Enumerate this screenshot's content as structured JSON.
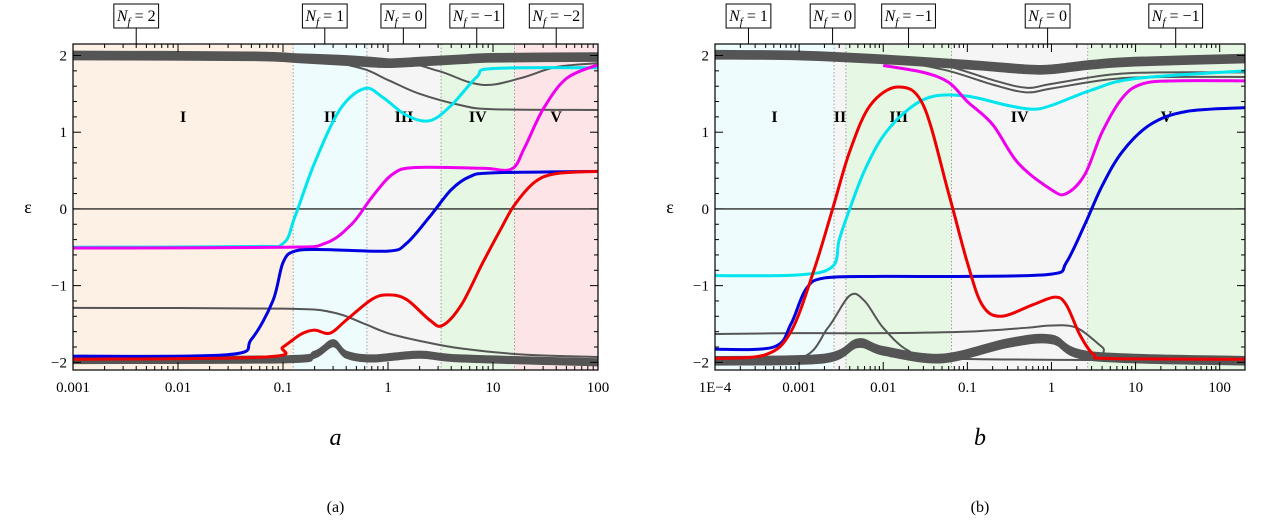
{
  "chart_data": [
    {
      "type": "line",
      "caption": "(a)",
      "xlabel": "a",
      "ylabel": "ε",
      "x_scale": "log",
      "xlim": [
        0.001,
        100
      ],
      "ylim": [
        -2.1,
        2.15
      ],
      "x_ticks": [
        0.001,
        0.01,
        0.1,
        1,
        10,
        100
      ],
      "x_tick_labels": [
        "0.001",
        "0.01",
        "0.1",
        "1",
        "10",
        "100"
      ],
      "y_ticks": [
        -2,
        -1,
        0,
        1,
        2
      ],
      "y_tick_labels": [
        "−2",
        "−1",
        "0",
        "1",
        "2"
      ],
      "regions": [
        {
          "label": "I",
          "x_from": 0.001,
          "x_to": 0.125,
          "color": "#fdf0e4"
        },
        {
          "label": "II",
          "x_from": 0.125,
          "x_to": 0.63,
          "color": "#eefcfd"
        },
        {
          "label": "III",
          "x_from": 0.63,
          "x_to": 3.2,
          "color": "#f5f5f5"
        },
        {
          "label": "IV",
          "x_from": 3.2,
          "x_to": 16,
          "color": "#e6f7e4"
        },
        {
          "label": "V",
          "x_from": 16,
          "x_to": 100,
          "color": "#fde4e6"
        }
      ],
      "region_label_y": 1.2,
      "top_labels": [
        {
          "text": "N_f = 2",
          "x": 0.004
        },
        {
          "text": "N_f = 1",
          "x": 0.25
        },
        {
          "text": "N_f = 0",
          "x": 1.4
        },
        {
          "text": "N_f = −1",
          "x": 7
        },
        {
          "text": "N_f = −2",
          "x": 40
        }
      ],
      "series": [
        {
          "color": "#00e5ee",
          "points": [
            [
              0.001,
              -0.5
            ],
            [
              0.05,
              -0.49
            ],
            [
              0.1,
              -0.45
            ],
            [
              0.13,
              -0.1
            ],
            [
              0.2,
              0.6
            ],
            [
              0.35,
              1.3
            ],
            [
              0.6,
              1.57
            ],
            [
              0.9,
              1.45
            ],
            [
              1.5,
              1.22
            ],
            [
              2.5,
              1.15
            ],
            [
              4,
              1.35
            ],
            [
              7,
              1.72
            ],
            [
              10,
              1.83
            ],
            [
              100,
              1.84
            ]
          ]
        },
        {
          "color": "#ee00ee",
          "points": [
            [
              0.001,
              -0.51
            ],
            [
              0.1,
              -0.5
            ],
            [
              0.25,
              -0.45
            ],
            [
              0.45,
              -0.2
            ],
            [
              0.7,
              0.15
            ],
            [
              1.1,
              0.45
            ],
            [
              1.8,
              0.54
            ],
            [
              8,
              0.53
            ],
            [
              15,
              0.52
            ],
            [
              20,
              0.8
            ],
            [
              30,
              1.3
            ],
            [
              50,
              1.7
            ],
            [
              100,
              1.88
            ]
          ]
        },
        {
          "color": "#0000e0",
          "points": [
            [
              0.001,
              -1.92
            ],
            [
              0.03,
              -1.9
            ],
            [
              0.05,
              -1.7
            ],
            [
              0.08,
              -1.2
            ],
            [
              0.1,
              -0.7
            ],
            [
              0.13,
              -0.55
            ],
            [
              0.25,
              -0.53
            ],
            [
              1,
              -0.55
            ],
            [
              1.5,
              -0.45
            ],
            [
              2.5,
              -0.1
            ],
            [
              4,
              0.25
            ],
            [
              6,
              0.42
            ],
            [
              10,
              0.47
            ],
            [
              100,
              0.49
            ]
          ]
        },
        {
          "color": "#ee0000",
          "points": [
            [
              0.001,
              -1.96
            ],
            [
              0.07,
              -1.93
            ],
            [
              0.1,
              -1.8
            ],
            [
              0.15,
              -1.63
            ],
            [
              0.2,
              -1.58
            ],
            [
              0.28,
              -1.62
            ],
            [
              0.4,
              -1.45
            ],
            [
              0.7,
              -1.18
            ],
            [
              1,
              -1.12
            ],
            [
              1.5,
              -1.18
            ],
            [
              2.5,
              -1.45
            ],
            [
              3.3,
              -1.52
            ],
            [
              5,
              -1.25
            ],
            [
              8,
              -0.7
            ],
            [
              12,
              -0.25
            ],
            [
              16,
              0.05
            ],
            [
              25,
              0.35
            ],
            [
              40,
              0.46
            ],
            [
              100,
              0.49
            ]
          ]
        }
      ],
      "gray_bands": [
        {
          "points": [
            [
              0.001,
              2.0
            ],
            [
              0.05,
              1.99
            ],
            [
              0.15,
              1.96
            ],
            [
              0.5,
              1.92
            ],
            [
              1,
              1.9
            ],
            [
              2,
              1.92
            ],
            [
              5,
              1.95
            ],
            [
              10,
              1.97
            ],
            [
              100,
              1.98
            ]
          ],
          "spread": 0.05,
          "count": 6
        },
        {
          "points": [
            [
              0.001,
              2.03
            ],
            [
              0.1,
              2.02
            ],
            [
              1,
              1.95
            ],
            [
              3,
              1.8
            ],
            [
              6,
              1.65
            ],
            [
              10,
              1.62
            ],
            [
              20,
              1.72
            ],
            [
              40,
              1.85
            ],
            [
              100,
              1.9
            ]
          ],
          "spread": 0.02,
          "count": 1
        },
        {
          "points": [
            [
              0.001,
              2.02
            ],
            [
              0.1,
              2.0
            ],
            [
              0.5,
              1.85
            ],
            [
              1,
              1.68
            ],
            [
              2,
              1.5
            ],
            [
              5,
              1.35
            ],
            [
              10,
              1.3
            ],
            [
              100,
              1.29
            ]
          ],
          "spread": 0.02,
          "count": 1
        },
        {
          "points": [
            [
              0.001,
              -1.29
            ],
            [
              0.1,
              -1.3
            ],
            [
              0.3,
              -1.35
            ],
            [
              0.6,
              -1.5
            ],
            [
              1,
              -1.62
            ],
            [
              2,
              -1.72
            ],
            [
              5,
              -1.82
            ],
            [
              20,
              -1.9
            ],
            [
              100,
              -1.93
            ]
          ],
          "spread": 0.02,
          "count": 1
        },
        {
          "points": [
            [
              0.001,
              -1.97
            ],
            [
              0.1,
              -1.96
            ],
            [
              0.2,
              -1.9
            ],
            [
              0.3,
              -1.75
            ],
            [
              0.4,
              -1.9
            ],
            [
              0.7,
              -1.95
            ],
            [
              2,
              -1.9
            ],
            [
              5,
              -1.95
            ],
            [
              100,
              -2.0
            ]
          ],
          "spread": 0.04,
          "count": 6
        }
      ]
    },
    {
      "type": "line",
      "caption": "(b)",
      "xlabel": "b",
      "ylabel": "ε",
      "x_scale": "log",
      "xlim": [
        0.0001,
        200
      ],
      "ylim": [
        -2.1,
        2.15
      ],
      "x_ticks": [
        0.0001,
        0.001,
        0.01,
        0.1,
        1,
        10,
        100
      ],
      "x_tick_labels": [
        "1E−4",
        "0.001",
        "0.01",
        "0.1",
        "1",
        "10",
        "100"
      ],
      "y_ticks": [
        -2,
        -1,
        0,
        1,
        2
      ],
      "y_tick_labels": [
        "−2",
        "−1",
        "0",
        "1",
        "2"
      ],
      "regions": [
        {
          "label": "I",
          "x_from": 0.0001,
          "x_to": 0.0026,
          "color": "#eefcfd"
        },
        {
          "label": "II",
          "x_from": 0.0026,
          "x_to": 0.0036,
          "color": "#f5f5f5"
        },
        {
          "label": "III",
          "x_from": 0.0036,
          "x_to": 0.065,
          "color": "#e6f7e4"
        },
        {
          "label": "IV",
          "x_from": 0.065,
          "x_to": 2.7,
          "color": "#f5f5f5"
        },
        {
          "label": "V",
          "x_from": 2.7,
          "x_to": 200,
          "color": "#e6f7e4"
        }
      ],
      "region_label_y": 1.2,
      "top_labels": [
        {
          "text": "N_f = 1",
          "x": 0.00025
        },
        {
          "text": "N_f = 0",
          "x": 0.0025
        },
        {
          "text": "N_f = −1",
          "x": 0.02
        },
        {
          "text": "N_f = 0",
          "x": 0.9
        },
        {
          "text": "N_f = −1",
          "x": 30
        }
      ],
      "series": [
        {
          "color": "#00e5ee",
          "points": [
            [
              0.0001,
              -0.87
            ],
            [
              0.001,
              -0.86
            ],
            [
              0.0025,
              -0.75
            ],
            [
              0.003,
              -0.4
            ],
            [
              0.004,
              0.0
            ],
            [
              0.006,
              0.5
            ],
            [
              0.01,
              0.95
            ],
            [
              0.02,
              1.3
            ],
            [
              0.04,
              1.47
            ],
            [
              0.1,
              1.47
            ],
            [
              0.3,
              1.35
            ],
            [
              0.6,
              1.3
            ],
            [
              1,
              1.35
            ],
            [
              3,
              1.55
            ],
            [
              10,
              1.7
            ],
            [
              200,
              1.8
            ]
          ]
        },
        {
          "color": "#ee00ee",
          "points": [
            [
              0.01,
              1.87
            ],
            [
              0.03,
              1.78
            ],
            [
              0.06,
              1.65
            ],
            [
              0.1,
              1.4
            ],
            [
              0.2,
              1.1
            ],
            [
              0.4,
              0.6
            ],
            [
              1,
              0.25
            ],
            [
              1.5,
              0.2
            ],
            [
              2.5,
              0.45
            ],
            [
              4,
              1.0
            ],
            [
              7,
              1.45
            ],
            [
              12,
              1.63
            ],
            [
              30,
              1.67
            ],
            [
              200,
              1.67
            ]
          ]
        },
        {
          "color": "#0000e0",
          "points": [
            [
              0.0001,
              -1.83
            ],
            [
              0.0005,
              -1.8
            ],
            [
              0.0008,
              -1.5
            ],
            [
              0.0012,
              -1.05
            ],
            [
              0.002,
              -0.9
            ],
            [
              0.01,
              -0.88
            ],
            [
              0.1,
              -0.88
            ],
            [
              1,
              -0.85
            ],
            [
              1.5,
              -0.7
            ],
            [
              2.5,
              -0.2
            ],
            [
              4,
              0.3
            ],
            [
              7,
              0.75
            ],
            [
              15,
              1.1
            ],
            [
              40,
              1.27
            ],
            [
              200,
              1.32
            ]
          ]
        },
        {
          "color": "#ee0000",
          "points": [
            [
              0.0001,
              -1.95
            ],
            [
              0.0004,
              -1.9
            ],
            [
              0.0008,
              -1.6
            ],
            [
              0.0015,
              -0.8
            ],
            [
              0.0025,
              0.0
            ],
            [
              0.004,
              0.75
            ],
            [
              0.007,
              1.35
            ],
            [
              0.015,
              1.59
            ],
            [
              0.03,
              1.35
            ],
            [
              0.06,
              0.2
            ],
            [
              0.1,
              -0.7
            ],
            [
              0.15,
              -1.25
            ],
            [
              0.25,
              -1.4
            ],
            [
              0.6,
              -1.25
            ],
            [
              1.1,
              -1.15
            ],
            [
              1.5,
              -1.25
            ],
            [
              2.2,
              -1.65
            ],
            [
              3.2,
              -1.9
            ],
            [
              5,
              -1.95
            ],
            [
              200,
              -1.96
            ]
          ]
        }
      ],
      "gray_bands": [
        {
          "points": [
            [
              0.0001,
              2.01
            ],
            [
              0.001,
              2.0
            ],
            [
              0.01,
              1.95
            ],
            [
              0.1,
              1.88
            ],
            [
              0.5,
              1.82
            ],
            [
              1,
              1.82
            ],
            [
              3,
              1.88
            ],
            [
              10,
              1.92
            ],
            [
              200,
              1.96
            ]
          ],
          "spread": 0.05,
          "count": 7
        },
        {
          "points": [
            [
              0.0001,
              2.02
            ],
            [
              0.01,
              1.95
            ],
            [
              0.05,
              1.85
            ],
            [
              0.2,
              1.65
            ],
            [
              0.5,
              1.55
            ],
            [
              1,
              1.6
            ],
            [
              5,
              1.72
            ],
            [
              20,
              1.75
            ],
            [
              200,
              1.75
            ]
          ],
          "spread": 0.03,
          "count": 2
        },
        {
          "points": [
            [
              0.0001,
              -1.63
            ],
            [
              0.001,
              -1.62
            ],
            [
              0.01,
              -1.62
            ],
            [
              0.1,
              -1.6
            ],
            [
              0.5,
              -1.55
            ],
            [
              1,
              -1.52
            ],
            [
              2,
              -1.55
            ],
            [
              4,
              -1.8
            ],
            [
              6,
              -1.95
            ],
            [
              200,
              -1.97
            ]
          ],
          "spread": 0.02,
          "count": 1
        },
        {
          "points": [
            [
              0.0001,
              -1.98
            ],
            [
              0.001,
              -1.95
            ],
            [
              0.0022,
              -1.55
            ],
            [
              0.004,
              -1.13
            ],
            [
              0.006,
              -1.2
            ],
            [
              0.01,
              -1.55
            ],
            [
              0.02,
              -1.85
            ],
            [
              0.05,
              -1.95
            ],
            [
              200,
              -1.98
            ]
          ],
          "spread": 0.02,
          "count": 1
        },
        {
          "points": [
            [
              0.0001,
              -1.98
            ],
            [
              0.002,
              -1.95
            ],
            [
              0.005,
              -1.75
            ],
            [
              0.01,
              -1.85
            ],
            [
              0.05,
              -1.95
            ],
            [
              0.3,
              -1.75
            ],
            [
              1,
              -1.7
            ],
            [
              3,
              -1.92
            ],
            [
              200,
              -1.98
            ]
          ],
          "spread": 0.05,
          "count": 6
        }
      ]
    }
  ]
}
